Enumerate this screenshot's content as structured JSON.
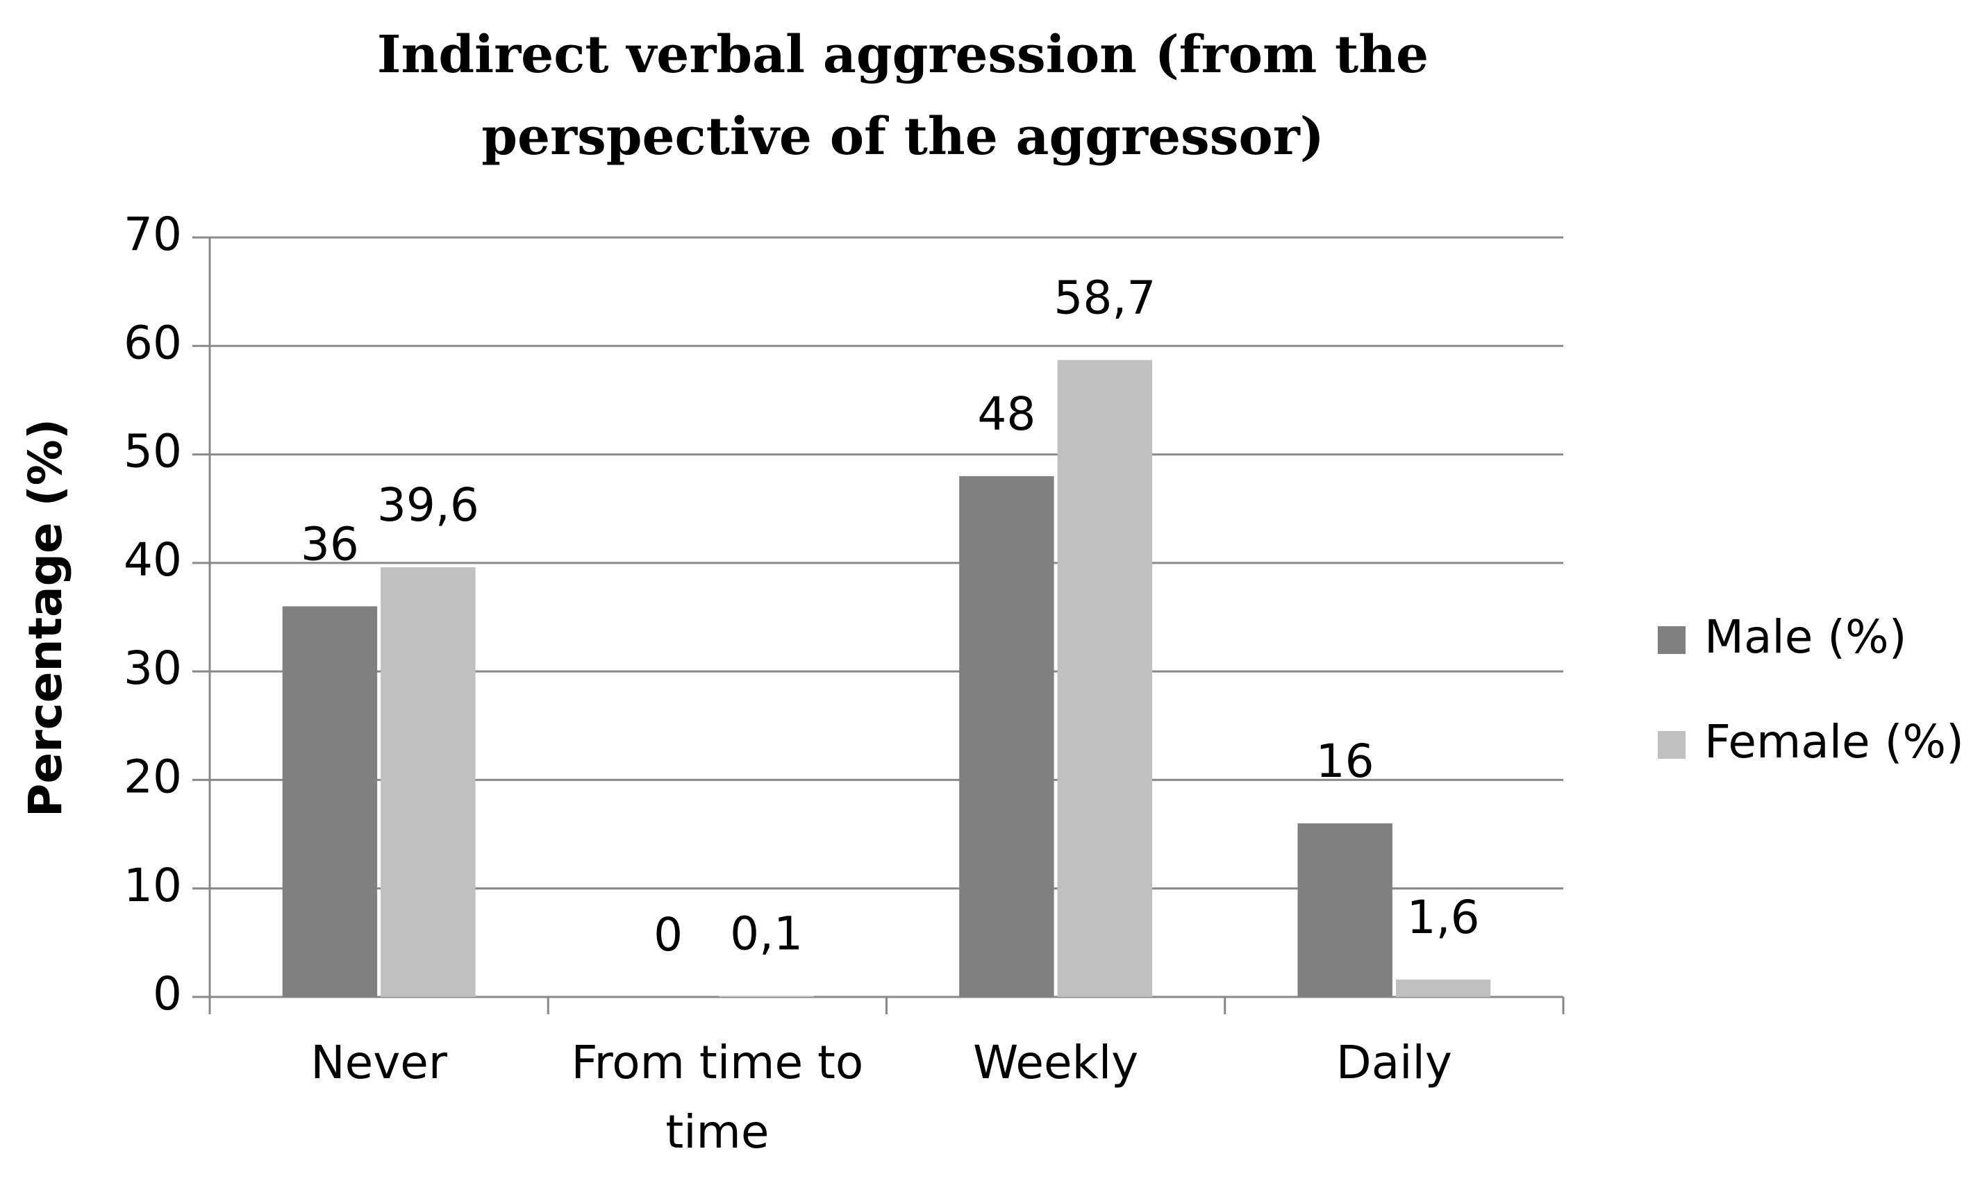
{
  "chart_data": {
    "type": "bar",
    "title": "Indirect verbal aggression (from the perspective of the aggressor)",
    "y_label": "Percentage (%)",
    "categories": [
      "Never",
      "From time to time",
      "Weekly",
      "Daily"
    ],
    "series": [
      {
        "name": "Male (%)",
        "color": "#808080",
        "values": [
          36,
          0,
          48,
          16
        ]
      },
      {
        "name": "Female (%)",
        "color": "#c0c0c0",
        "values": [
          39.6,
          0.1,
          58.7,
          1.6
        ],
        "value_labels": [
          "39,6",
          "0,1",
          "58,7",
          "1,6"
        ]
      }
    ],
    "ylim": [
      0,
      70
    ],
    "yticks": [
      0,
      10,
      20,
      30,
      40,
      50,
      60,
      70
    ],
    "grid": true,
    "legend": "right"
  }
}
